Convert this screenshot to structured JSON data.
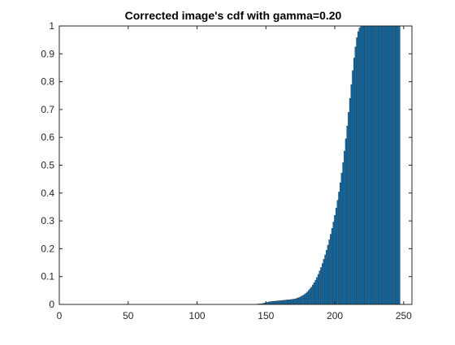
{
  "chart_data": {
    "type": "bar",
    "title": "Corrected image's cdf with gamma=0.20",
    "xlabel": "",
    "ylabel": "",
    "xlim": [
      0,
      256
    ],
    "ylim": [
      0,
      1
    ],
    "xticks": [
      0,
      50,
      100,
      150,
      200,
      250
    ],
    "xtick_labels": [
      "0",
      "50",
      "100",
      "150",
      "200",
      "250"
    ],
    "yticks": [
      0,
      0.1,
      0.2,
      0.3,
      0.4,
      0.5,
      0.6,
      0.7,
      0.8,
      0.9,
      1
    ],
    "ytick_labels": [
      "0",
      "0.1",
      "0.2",
      "0.3",
      "0.4",
      "0.5",
      "0.6",
      "0.7",
      "0.8",
      "0.9",
      "1"
    ],
    "grid": false,
    "bar_color": "#0072BD",
    "bar_edge_color": "#1a1a1a",
    "x_start": 1,
    "values": [
      0,
      0,
      0,
      0,
      0,
      0,
      0,
      0,
      0,
      0,
      0,
      0,
      0,
      0,
      0,
      0,
      0,
      0,
      0,
      0,
      0,
      0,
      0,
      0,
      0,
      0,
      0,
      0,
      0,
      0,
      0,
      0,
      0,
      0,
      0,
      0,
      0,
      0,
      0,
      0,
      0,
      0,
      0,
      0,
      0,
      0,
      0,
      0,
      0,
      0,
      0,
      0,
      0,
      0,
      0,
      0,
      0,
      0,
      0,
      0,
      0,
      0,
      0,
      0,
      0,
      0,
      0,
      0,
      0,
      0,
      0,
      0,
      0,
      0,
      0,
      0,
      0,
      0,
      0,
      0,
      0,
      0,
      0,
      0,
      0,
      0,
      0,
      0,
      0,
      0,
      0,
      0,
      0,
      0,
      0,
      0,
      0,
      0,
      0,
      0,
      0,
      0,
      0,
      0,
      0,
      0,
      0,
      0,
      0,
      0,
      0,
      0,
      0,
      0,
      0,
      0,
      0,
      0,
      0,
      0,
      0,
      0,
      0,
      0,
      0,
      0,
      0,
      0,
      0,
      0,
      0,
      0,
      0,
      0,
      0,
      0,
      0,
      0,
      0,
      0,
      0.0005,
      0.001,
      0.001,
      0.0015,
      0.002,
      0.0025,
      0.003,
      0.004,
      0.005,
      0.006,
      0.0075,
      0.009,
      0.01,
      0.0105,
      0.011,
      0.0115,
      0.012,
      0.0125,
      0.013,
      0.0135,
      0.014,
      0.0145,
      0.015,
      0.0155,
      0.016,
      0.0165,
      0.017,
      0.0175,
      0.018,
      0.019,
      0.02,
      0.021,
      0.023,
      0.025,
      0.027,
      0.03,
      0.033,
      0.036,
      0.04,
      0.045,
      0.05,
      0.056,
      0.062,
      0.07,
      0.078,
      0.087,
      0.097,
      0.108,
      0.12,
      0.133,
      0.147,
      0.162,
      0.178,
      0.195,
      0.213,
      0.232,
      0.252,
      0.273,
      0.296,
      0.32,
      0.346,
      0.374,
      0.404,
      0.437,
      0.472,
      0.51,
      0.551,
      0.595,
      0.641,
      0.69,
      0.74,
      0.79,
      0.84,
      0.885,
      0.925,
      0.958,
      0.98,
      0.993,
      1,
      1,
      1,
      1,
      1,
      1,
      1,
      1,
      1,
      1,
      1,
      1,
      1,
      1,
      1,
      1,
      1,
      1,
      1,
      1,
      1,
      1,
      1,
      1,
      1,
      1,
      1,
      1,
      1
    ]
  }
}
